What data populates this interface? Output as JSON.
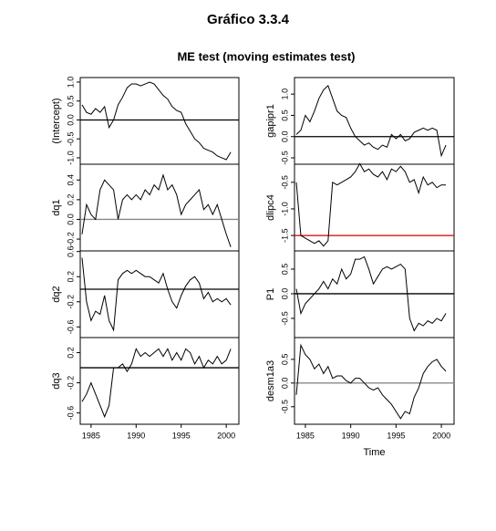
{
  "title": "Gráfico 3.3.4",
  "subtitle": "ME test (moving estimates test)",
  "chart_data": [
    {
      "type": "line",
      "ylabel": "(Intercept)",
      "color": "#000000",
      "xlim": [
        1983.8,
        2001.4
      ],
      "ylim": [
        -1.17,
        1.12
      ],
      "yticks": [
        {
          "value": -1,
          "label": "-1.0"
        },
        {
          "value": -0.5,
          "label": "-0.5"
        },
        {
          "value": 0,
          "label": "0.0"
        },
        {
          "value": 0.5,
          "label": "0.5"
        },
        {
          "value": 1,
          "label": "1.0"
        }
      ],
      "hline": {
        "value": 0,
        "color": "#000000"
      },
      "x": [
        1984,
        1984.5,
        1985,
        1985.5,
        1986,
        1986.5,
        1987,
        1987.5,
        1988,
        1988.5,
        1989,
        1989.5,
        1990,
        1990.5,
        1991,
        1991.5,
        1992,
        1992.5,
        1993,
        1993.5,
        1994,
        1994.5,
        1995,
        1995.5,
        1996,
        1996.5,
        1997,
        1997.5,
        1998,
        1998.5,
        1999,
        1999.5,
        2000,
        2000.5
      ],
      "values": [
        0.4,
        0.2,
        0.15,
        0.3,
        0.2,
        0.35,
        -0.2,
        0.0,
        0.4,
        0.6,
        0.85,
        0.95,
        0.95,
        0.9,
        0.95,
        1.0,
        0.95,
        0.8,
        0.65,
        0.55,
        0.35,
        0.25,
        0.2,
        -0.1,
        -0.3,
        -0.5,
        -0.6,
        -0.75,
        -0.8,
        -0.85,
        -0.95,
        -1.0,
        -1.05,
        -0.85
      ]
    },
    {
      "type": "line",
      "ylabel": "dq1",
      "color": "#000000",
      "xlim": [
        1983.8,
        2001.4
      ],
      "ylim": [
        -0.32,
        0.56
      ],
      "yticks": [
        {
          "value": -0.2,
          "label": "-0.2"
        },
        {
          "value": 0,
          "label": "0.0"
        },
        {
          "value": 0.2,
          "label": "0.2"
        },
        {
          "value": 0.4,
          "label": "0.4"
        }
      ],
      "hline": {
        "value": 0,
        "color": "#888888"
      },
      "x": [
        1984,
        1984.5,
        1985,
        1985.5,
        1986,
        1986.5,
        1987,
        1987.5,
        1988,
        1988.5,
        1989,
        1989.5,
        1990,
        1990.5,
        1991,
        1991.5,
        1992,
        1992.5,
        1993,
        1993.5,
        1994,
        1994.5,
        1995,
        1995.5,
        1996,
        1996.5,
        1997,
        1997.5,
        1998,
        1998.5,
        1999,
        1999.5,
        2000,
        2000.5
      ],
      "values": [
        -0.15,
        0.15,
        0.05,
        0.0,
        0.3,
        0.4,
        0.35,
        0.3,
        0.0,
        0.2,
        0.25,
        0.2,
        0.25,
        0.2,
        0.3,
        0.25,
        0.35,
        0.3,
        0.45,
        0.3,
        0.35,
        0.25,
        0.05,
        0.15,
        0.2,
        0.25,
        0.3,
        0.1,
        0.15,
        0.05,
        0.15,
        0.0,
        -0.15,
        -0.28
      ]
    },
    {
      "type": "line",
      "ylabel": "dq2",
      "color": "#000000",
      "xlim": [
        1983.8,
        2001.4
      ],
      "ylim": [
        -0.77,
        0.61
      ],
      "yticks": [
        {
          "value": -0.6,
          "label": "-0.6"
        },
        {
          "value": -0.2,
          "label": "-0.2"
        },
        {
          "value": 0.2,
          "label": "0.2"
        },
        {
          "value": 0.6,
          "label": "0.6"
        }
      ],
      "hline": {
        "value": 0,
        "color": "#000000"
      },
      "x": [
        1984,
        1984.5,
        1985,
        1985.5,
        1986,
        1986.5,
        1987,
        1987.5,
        1988,
        1988.5,
        1989,
        1989.5,
        1990,
        1990.5,
        1991,
        1991.5,
        1992,
        1992.5,
        1993,
        1993.5,
        1994,
        1994.5,
        1995,
        1995.5,
        1996,
        1996.5,
        1997,
        1997.5,
        1998,
        1998.5,
        1999,
        1999.5,
        2000,
        2000.5
      ],
      "values": [
        0.5,
        -0.2,
        -0.5,
        -0.35,
        -0.4,
        -0.1,
        -0.5,
        -0.65,
        0.15,
        0.25,
        0.3,
        0.25,
        0.3,
        0.25,
        0.2,
        0.2,
        0.15,
        0.1,
        0.25,
        0.0,
        -0.2,
        -0.3,
        -0.1,
        0.05,
        0.15,
        0.2,
        0.1,
        -0.15,
        -0.05,
        -0.2,
        -0.15,
        -0.2,
        -0.15,
        -0.25
      ]
    },
    {
      "type": "line",
      "ylabel": "dq3",
      "color": "#000000",
      "xlim": [
        1983.8,
        2001.4
      ],
      "ylim": [
        -0.75,
        0.4
      ],
      "yticks": [
        {
          "value": -0.6,
          "label": "-0.6"
        },
        {
          "value": -0.2,
          "label": "-0.2"
        },
        {
          "value": 0.2,
          "label": "0.2"
        }
      ],
      "xticks": [
        1985,
        1990,
        1995,
        2000
      ],
      "hline": {
        "value": 0,
        "color": "#000000"
      },
      "x": [
        1984,
        1984.5,
        1985,
        1985.5,
        1986,
        1986.5,
        1987,
        1987.5,
        1988,
        1988.5,
        1989,
        1989.5,
        1990,
        1990.5,
        1991,
        1991.5,
        1992,
        1992.5,
        1993,
        1993.5,
        1994,
        1994.5,
        1995,
        1995.5,
        1996,
        1996.5,
        1997,
        1997.5,
        1998,
        1998.5,
        1999,
        1999.5,
        2000,
        2000.5
      ],
      "values": [
        -0.45,
        -0.35,
        -0.2,
        -0.35,
        -0.5,
        -0.65,
        -0.5,
        0.0,
        0.0,
        0.05,
        -0.05,
        0.05,
        0.25,
        0.15,
        0.2,
        0.15,
        0.2,
        0.25,
        0.15,
        0.25,
        0.1,
        0.2,
        0.1,
        0.25,
        0.2,
        0.05,
        0.15,
        0.0,
        0.1,
        0.05,
        0.15,
        0.05,
        0.1,
        0.25
      ]
    },
    {
      "type": "line",
      "ylabel": "gapipr1",
      "color": "#000000",
      "xlim": [
        1983.8,
        2001.4
      ],
      "ylim": [
        -0.65,
        1.39
      ],
      "yticks": [
        {
          "value": -0.5,
          "label": "-0.5"
        },
        {
          "value": 0,
          "label": "0.0"
        },
        {
          "value": 0.5,
          "label": "0.5"
        },
        {
          "value": 1,
          "label": "1.0"
        }
      ],
      "hline": {
        "value": 0,
        "color": "#000000"
      },
      "x": [
        1984,
        1984.5,
        1985,
        1985.5,
        1986,
        1986.5,
        1987,
        1987.5,
        1988,
        1988.5,
        1989,
        1989.5,
        1990,
        1990.5,
        1991,
        1991.5,
        1992,
        1992.5,
        1993,
        1993.5,
        1994,
        1994.5,
        1995,
        1995.5,
        1996,
        1996.5,
        1997,
        1997.5,
        1998,
        1998.5,
        1999,
        1999.5,
        2000,
        2000.5
      ],
      "values": [
        0.05,
        0.15,
        0.5,
        0.35,
        0.6,
        0.9,
        1.1,
        1.2,
        0.9,
        0.6,
        0.5,
        0.45,
        0.2,
        0.0,
        -0.1,
        -0.2,
        -0.15,
        -0.25,
        -0.3,
        -0.2,
        -0.25,
        0.05,
        -0.05,
        0.05,
        -0.1,
        -0.05,
        0.1,
        0.15,
        0.2,
        0.15,
        0.2,
        0.15,
        -0.45,
        -0.2
      ]
    },
    {
      "type": "line",
      "ylabel": "dlipc4",
      "color": "#000000",
      "xlim": [
        1983.8,
        2001.4
      ],
      "ylim": [
        -1.79,
        -0.16
      ],
      "yticks": [
        {
          "value": -1.5,
          "label": "-1.5"
        },
        {
          "value": -1,
          "label": "-1.0"
        },
        {
          "value": -0.5,
          "label": "-0.5"
        }
      ],
      "hline": {
        "value": -1.5,
        "color": "#cc0000"
      },
      "x": [
        1984,
        1984.5,
        1985,
        1985.5,
        1986,
        1986.5,
        1987,
        1987.5,
        1988,
        1988.5,
        1989,
        1989.5,
        1990,
        1990.5,
        1991,
        1991.5,
        1992,
        1992.5,
        1993,
        1993.5,
        1994,
        1994.5,
        1995,
        1995.5,
        1996,
        1996.5,
        1997,
        1997.5,
        1998,
        1998.5,
        1999,
        1999.5,
        2000,
        2000.5
      ],
      "values": [
        -0.5,
        -1.5,
        -1.55,
        -1.6,
        -1.65,
        -1.6,
        -1.7,
        -1.6,
        -0.5,
        -0.55,
        -0.5,
        -0.45,
        -0.4,
        -0.3,
        -0.15,
        -0.3,
        -0.25,
        -0.35,
        -0.4,
        -0.3,
        -0.45,
        -0.25,
        -0.3,
        -0.2,
        -0.3,
        -0.5,
        -0.45,
        -0.7,
        -0.4,
        -0.55,
        -0.5,
        -0.6,
        -0.55,
        -0.55
      ]
    },
    {
      "type": "line",
      "ylabel": "P1",
      "color": "#000000",
      "xlim": [
        1983.8,
        2001.4
      ],
      "ylim": [
        -0.89,
        0.87
      ],
      "yticks": [
        {
          "value": -0.5,
          "label": "-0.5"
        },
        {
          "value": 0,
          "label": "0.0"
        },
        {
          "value": 0.5,
          "label": "0.5"
        }
      ],
      "hline": {
        "value": 0,
        "color": "#000000"
      },
      "x": [
        1984,
        1984.5,
        1985,
        1985.5,
        1986,
        1986.5,
        1987,
        1987.5,
        1988,
        1988.5,
        1989,
        1989.5,
        1990,
        1990.5,
        1991,
        1991.5,
        1992,
        1992.5,
        1993,
        1993.5,
        1994,
        1994.5,
        1995,
        1995.5,
        1996,
        1996.5,
        1997,
        1997.5,
        1998,
        1998.5,
        1999,
        1999.5,
        2000,
        2000.5
      ],
      "values": [
        0.1,
        -0.4,
        -0.2,
        -0.1,
        0.0,
        0.1,
        0.25,
        0.1,
        0.3,
        0.2,
        0.5,
        0.3,
        0.4,
        0.7,
        0.7,
        0.75,
        0.5,
        0.2,
        0.35,
        0.5,
        0.55,
        0.5,
        0.55,
        0.6,
        0.5,
        -0.5,
        -0.75,
        -0.6,
        -0.65,
        -0.55,
        -0.6,
        -0.5,
        -0.55,
        -0.4
      ]
    },
    {
      "type": "line",
      "ylabel": "desm1a3",
      "xlabel": "Time",
      "color": "#000000",
      "xlim": [
        1983.8,
        2001.4
      ],
      "ylim": [
        -0.87,
        0.96
      ],
      "yticks": [
        {
          "value": -0.5,
          "label": "-0.5"
        },
        {
          "value": 0,
          "label": "0.0"
        },
        {
          "value": 0.5,
          "label": "0.5"
        }
      ],
      "xticks": [
        1985,
        1990,
        1995,
        2000
      ],
      "hline": {
        "value": 0,
        "color": "#888888"
      },
      "x": [
        1984,
        1984.5,
        1985,
        1985.5,
        1986,
        1986.5,
        1987,
        1987.5,
        1988,
        1988.5,
        1989,
        1989.5,
        1990,
        1990.5,
        1991,
        1991.5,
        1992,
        1992.5,
        1993,
        1993.5,
        1994,
        1994.5,
        1995,
        1995.5,
        1996,
        1996.5,
        1997,
        1997.5,
        1998,
        1998.5,
        1999,
        1999.5,
        2000,
        2000.5
      ],
      "values": [
        -0.25,
        0.8,
        0.6,
        0.5,
        0.3,
        0.4,
        0.2,
        0.35,
        0.1,
        0.15,
        0.15,
        0.05,
        0.0,
        0.1,
        0.1,
        0.0,
        -0.1,
        -0.15,
        -0.1,
        -0.25,
        -0.35,
        -0.45,
        -0.6,
        -0.75,
        -0.6,
        -0.65,
        -0.3,
        -0.1,
        0.2,
        0.35,
        0.45,
        0.5,
        0.35,
        0.25
      ]
    }
  ]
}
